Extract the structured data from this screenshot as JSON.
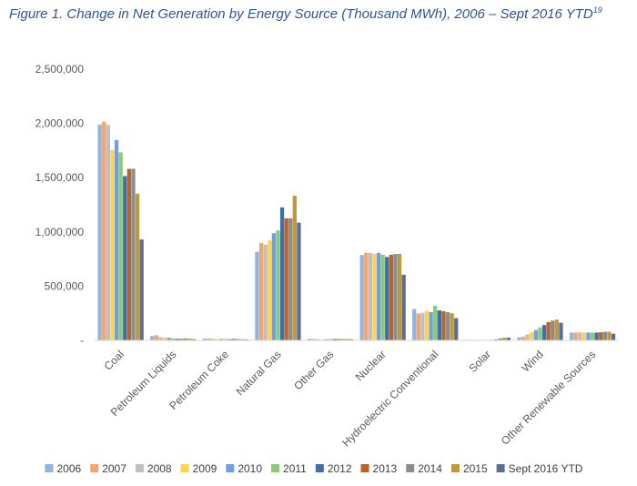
{
  "title_text": "Figure 1. Change in Net Generation by Energy Source (Thousand MWh), 2006 – Sept 2016 YTD",
  "title_sup": "19",
  "chart_data": {
    "type": "bar",
    "title": "Figure 1. Change in Net Generation by Energy Source (Thousand MWh), 2006 – Sept 2016 YTD",
    "xlabel": "",
    "ylabel": "",
    "ylim": [
      0,
      2500000
    ],
    "yticks": [
      0,
      500000,
      1000000,
      1500000,
      2000000,
      2500000
    ],
    "ytick_labels": [
      "-",
      "500,000",
      "1,000,000",
      "1,500,000",
      "2,000,000",
      "2,500,000"
    ],
    "grid": false,
    "legend_position": "bottom",
    "categories": [
      "Coal",
      "Petroleum Liquids",
      "Petroleum Coke",
      "Natural Gas",
      "Other Gas",
      "Nuclear",
      "Hydroelectric Conventional",
      "Solar",
      "Wind",
      "Other Renewable Sources"
    ],
    "series": [
      {
        "name": "2006",
        "color": "#8fb4de",
        "values": [
          1990000,
          40000,
          16000,
          816000,
          14000,
          787000,
          289000,
          500,
          27000,
          71000
        ]
      },
      {
        "name": "2007",
        "color": "#f4a46e",
        "values": [
          2016000,
          48000,
          16000,
          897000,
          13000,
          806000,
          248000,
          600,
          34000,
          72000
        ]
      },
      {
        "name": "2008",
        "color": "#bfbfbf",
        "values": [
          1986000,
          30000,
          14000,
          883000,
          11000,
          806000,
          254000,
          900,
          55000,
          73000
        ]
      },
      {
        "name": "2009",
        "color": "#ffd34d",
        "values": [
          1756000,
          26000,
          12000,
          921000,
          10000,
          799000,
          273000,
          900,
          74000,
          72000
        ]
      },
      {
        "name": "2010",
        "color": "#6f9fe0",
        "values": [
          1847000,
          24000,
          12000,
          988000,
          11000,
          807000,
          260000,
          1200,
          95000,
          72000
        ]
      },
      {
        "name": "2011",
        "color": "#8bc97b",
        "values": [
          1733000,
          19000,
          11000,
          1014000,
          11000,
          790000,
          319000,
          1800,
          120000,
          71000
        ]
      },
      {
        "name": "2012",
        "color": "#3d6fa8",
        "values": [
          1514000,
          14000,
          10000,
          1226000,
          12000,
          769000,
          276000,
          4300,
          141000,
          72000
        ]
      },
      {
        "name": "2013",
        "color": "#b7642c",
        "values": [
          1581000,
          14000,
          13000,
          1125000,
          12000,
          789000,
          269000,
          9000,
          168000,
          75000
        ]
      },
      {
        "name": "2014",
        "color": "#8c8c8c",
        "values": [
          1582000,
          18000,
          12000,
          1126000,
          12000,
          797000,
          260000,
          18000,
          182000,
          79000
        ]
      },
      {
        "name": "2015",
        "color": "#bf9a3a",
        "values": [
          1352000,
          17000,
          11000,
          1333000,
          13000,
          797000,
          250000,
          25000,
          191000,
          79000
        ]
      },
      {
        "name": "Sept 2016 YTD",
        "color": "#5b6f94",
        "values": [
          930000,
          11000,
          8000,
          1085000,
          10000,
          605000,
          205000,
          25000,
          162000,
          62000
        ]
      }
    ]
  }
}
